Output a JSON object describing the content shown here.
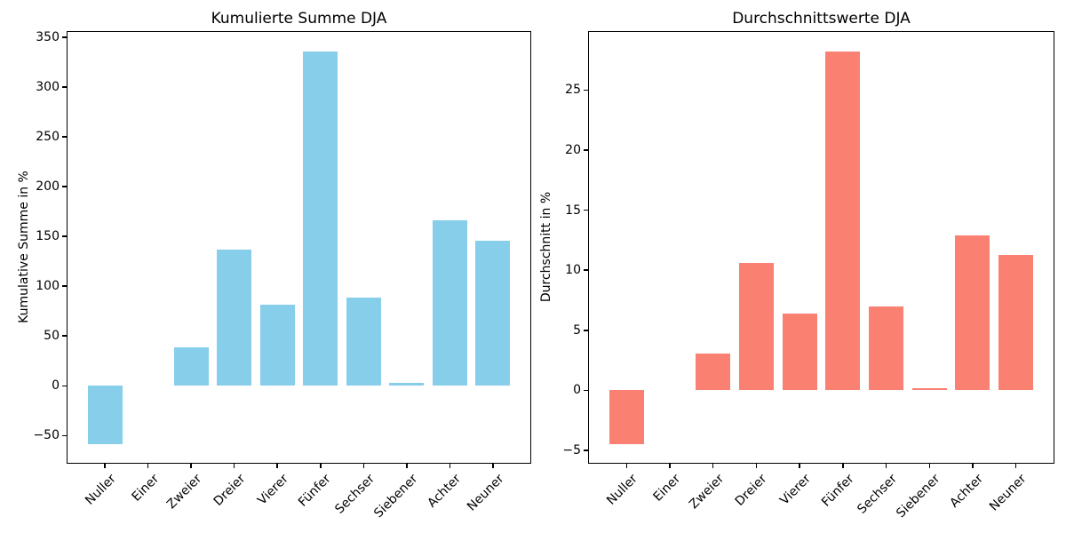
{
  "figure": {
    "background": "#ffffff",
    "text_color": "#000000"
  },
  "chart_data": [
    {
      "type": "bar",
      "title": "Kumulierte Summe DJA",
      "xlabel": "",
      "ylabel": "Kumulative Summe in %",
      "categories": [
        "Nuller",
        "Einer",
        "Zweier",
        "Dreier",
        "Vierer",
        "Fünfer",
        "Sechser",
        "Siebener",
        "Achter",
        "Neuner"
      ],
      "values": [
        -58.5,
        0,
        39,
        137,
        81.5,
        335.5,
        89,
        3,
        166.5,
        146
      ],
      "bar_color": "#87CEEB",
      "ylim": [
        -78.3,
        356.3
      ],
      "yticks": [
        -50,
        0,
        50,
        100,
        150,
        200,
        250,
        300,
        350
      ],
      "xtick_rotation": 45,
      "grid": false,
      "legend": null
    },
    {
      "type": "bar",
      "title": "Durchschnittswerte DJA",
      "xlabel": "",
      "ylabel": "Durchschnitt in %",
      "categories": [
        "Nuller",
        "Einer",
        "Zweier",
        "Dreier",
        "Vierer",
        "Fünfer",
        "Sechser",
        "Siebener",
        "Achter",
        "Neuner"
      ],
      "values": [
        -4.5,
        0,
        3.1,
        10.6,
        6.4,
        28.2,
        7.0,
        0.2,
        12.9,
        11.3
      ],
      "bar_color": "#FA8072",
      "ylim": [
        -6.1,
        29.9
      ],
      "yticks": [
        -5,
        0,
        5,
        10,
        15,
        20,
        25
      ],
      "xtick_rotation": 45,
      "grid": false,
      "legend": null
    }
  ]
}
